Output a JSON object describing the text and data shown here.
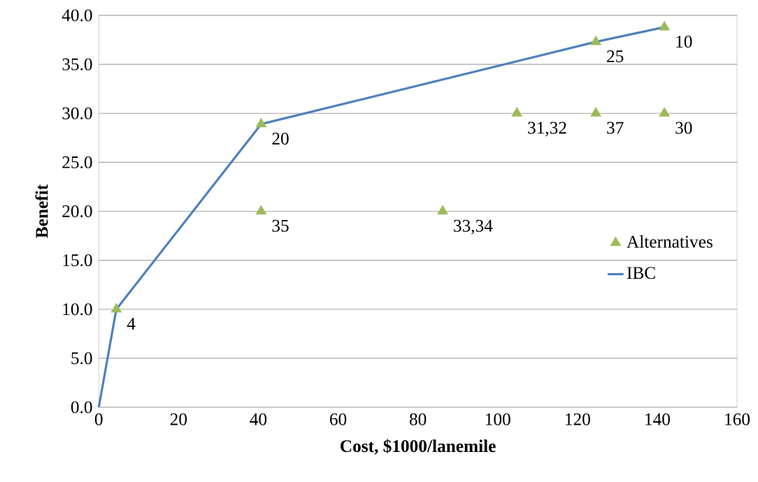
{
  "chart_data": {
    "type": "scatter",
    "xlabel": "Cost, $1000/lanemile",
    "ylabel": "Benefit",
    "xlim": [
      0,
      160
    ],
    "xticks": [
      0,
      20,
      40,
      60,
      80,
      100,
      120,
      140,
      160
    ],
    "ylim": [
      0,
      40
    ],
    "yticks": [
      {
        "value": 0,
        "label": "0.0"
      },
      {
        "value": 5,
        "label": "5.0"
      },
      {
        "value": 10,
        "label": "10.0"
      },
      {
        "value": 15,
        "label": "15.0"
      },
      {
        "value": 20,
        "label": "20.0"
      },
      {
        "value": 25,
        "label": "25.0"
      },
      {
        "value": 30,
        "label": "30.0"
      },
      {
        "value": 35,
        "label": "35.0"
      },
      {
        "value": 40,
        "label": "40.0"
      }
    ],
    "grid": "y",
    "legend": "right",
    "series": [
      {
        "name": "Alternatives",
        "marker": "triangle",
        "color": "#9bbb59",
        "x": [
          4.4,
          40.7,
          40.7,
          86.2,
          104.8,
          124.6,
          124.6,
          141.8,
          141.8
        ],
        "values": [
          10,
          20,
          28.9,
          20,
          30,
          30,
          37.3,
          30,
          38.8
        ]
      },
      {
        "name": "IBC",
        "type": "line",
        "color": "#4f81bd",
        "x": [
          0,
          4.4,
          40.7,
          124.6,
          141.8
        ],
        "values": [
          0,
          10,
          28.9,
          37.3,
          38.8
        ]
      }
    ],
    "annotations": [
      {
        "text": "4",
        "x": 4.4,
        "y": 10
      },
      {
        "text": "35",
        "x": 40.7,
        "y": 20
      },
      {
        "text": "20",
        "x": 40.7,
        "y": 28.9
      },
      {
        "text": "33,34",
        "x": 86.2,
        "y": 20
      },
      {
        "text": "31,32",
        "x": 104.8,
        "y": 30
      },
      {
        "text": "37",
        "x": 124.6,
        "y": 30
      },
      {
        "text": "25",
        "x": 124.6,
        "y": 37.3
      },
      {
        "text": "30",
        "x": 141.8,
        "y": 30
      },
      {
        "text": "10",
        "x": 141.8,
        "y": 38.8
      }
    ]
  }
}
